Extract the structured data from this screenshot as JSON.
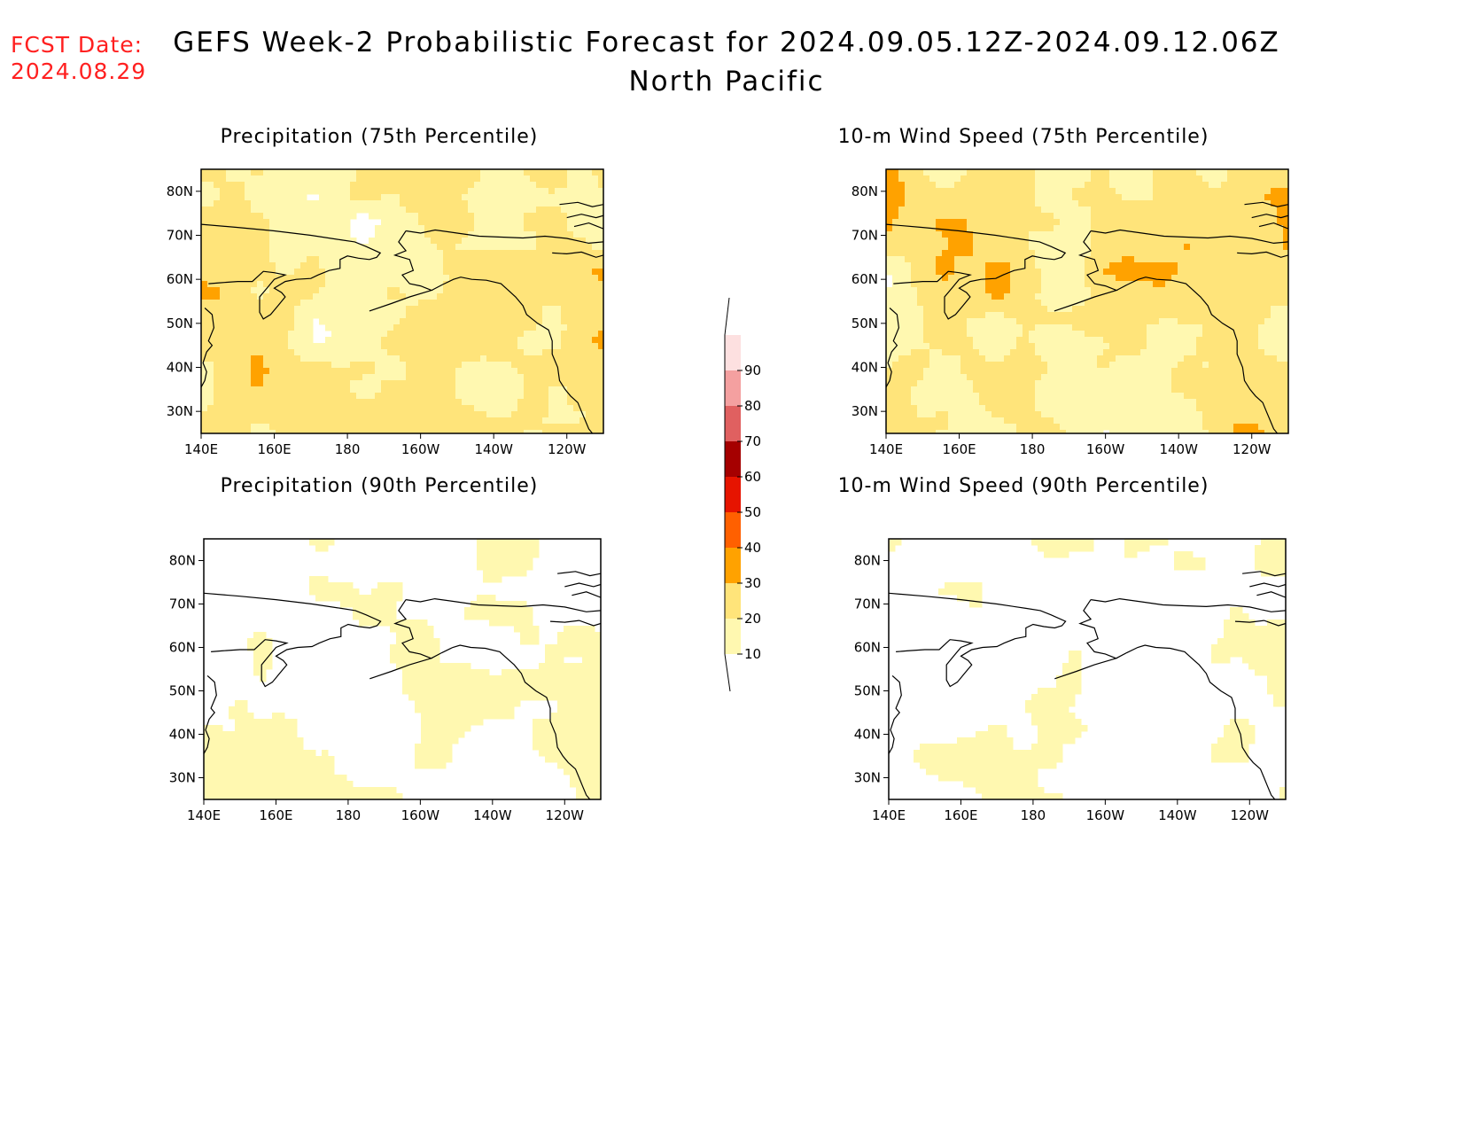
{
  "header": {
    "fcst_label": "FCST Date:",
    "fcst_date": "2024.08.29",
    "title": "GEFS Week-2 Probabilistic Forecast for 2024.09.05.12Z-2024.09.12.06Z",
    "subtitle": "North Pacific"
  },
  "panels": [
    {
      "title": "Precipitation (75th Percentile)",
      "level": 0.62
    },
    {
      "title": "10-m Wind Speed (75th Percentile)",
      "level": 0.6
    },
    {
      "title": "Precipitation (90th Percentile)",
      "level": 0.18
    },
    {
      "title": "10-m Wind Speed (90th Percentile)",
      "level": 0.15
    }
  ],
  "axes": {
    "lon_ticks": [
      "140E",
      "160E",
      "180",
      "160W",
      "140W",
      "120W"
    ],
    "lat_ticks": [
      "80N",
      "70N",
      "60N",
      "50N",
      "40N",
      "30N"
    ],
    "lon_range": [
      140,
      250
    ],
    "lat_range": [
      25,
      85
    ]
  },
  "colorbar": {
    "levels": [
      "10",
      "20",
      "30",
      "40",
      "50",
      "60",
      "70",
      "80",
      "90"
    ],
    "colors": [
      "#fff8b0",
      "#ffe47a",
      "#ffa200",
      "#ff6000",
      "#e61400",
      "#a50000",
      "#e06060",
      "#f4a0a0",
      "#fde0e0"
    ]
  }
}
